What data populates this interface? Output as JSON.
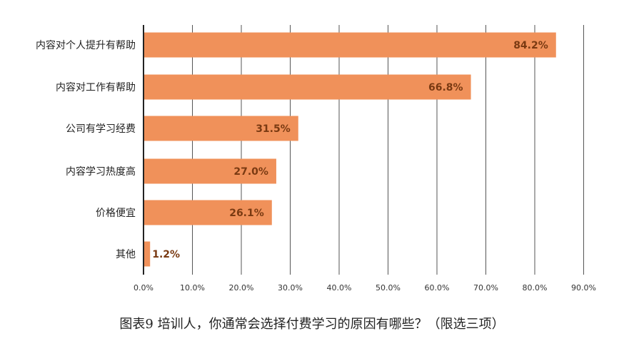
{
  "caption": "图表9   培训人，你通常会选择付费学习的原因有哪些？（限选三项）",
  "chart_data": {
    "type": "bar",
    "orientation": "horizontal",
    "title": "",
    "xlabel": "",
    "ylabel": "",
    "categories": [
      "内容对个人提升有帮助",
      "内容对工作有帮助",
      "公司有学习经费",
      "内容学习热度高",
      "价格便宜",
      "其他"
    ],
    "values": [
      84.2,
      66.8,
      31.5,
      27.0,
      26.1,
      1.2
    ],
    "value_labels": [
      "84.2%",
      "66.8%",
      "31.5%",
      "27.0%",
      "26.1%",
      "1.2%"
    ],
    "xlim": [
      0,
      90
    ],
    "ticks": [
      0,
      10,
      20,
      30,
      40,
      50,
      60,
      70,
      80,
      90
    ],
    "tick_labels": [
      "0.0%",
      "10.0%",
      "20.0%",
      "30.0%",
      "40.0%",
      "50.0%",
      "60.0%",
      "70.0%",
      "80.0%",
      "90.0%"
    ],
    "grid": true,
    "legend": "none",
    "colors": {
      "bar": "#f0915a",
      "grid": "#555555",
      "label": "#7a3a12"
    }
  }
}
